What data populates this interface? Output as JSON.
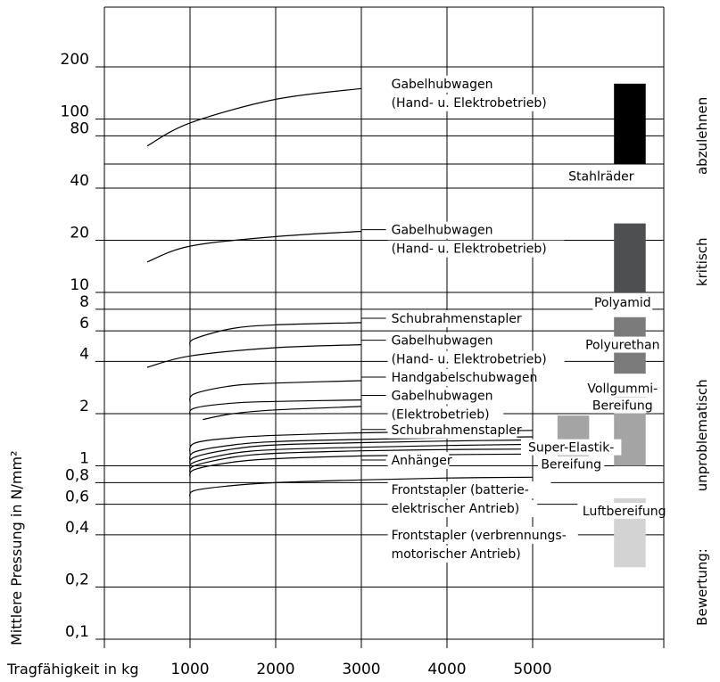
{
  "chart_data": {
    "type": "line",
    "xlabel": "Tragfähigkeit in kg",
    "ylabel": "Mittlere Pressung in N/mm²",
    "ylog": true,
    "ylim": [
      0.1,
      400
    ],
    "xlim": [
      0,
      6100
    ],
    "x_ticks": [
      {
        "v": 1000,
        "label": "1000"
      },
      {
        "v": 2000,
        "label": "2000"
      },
      {
        "v": 3000,
        "label": "3000"
      },
      {
        "v": 4000,
        "label": "4000"
      },
      {
        "v": 5000,
        "label": "5000"
      }
    ],
    "y_ticks": [
      {
        "v": 200,
        "label": "200"
      },
      {
        "v": 100,
        "label": "100"
      },
      {
        "v": 80,
        "label": "80"
      },
      {
        "v": 40,
        "label": "40"
      },
      {
        "v": 20,
        "label": "20"
      },
      {
        "v": 10,
        "label": "10"
      },
      {
        "v": 8,
        "label": "8"
      },
      {
        "v": 6,
        "label": "6"
      },
      {
        "v": 4,
        "label": "4"
      },
      {
        "v": 2,
        "label": "2"
      },
      {
        "v": 1,
        "label": "1"
      },
      {
        "v": 0.8,
        "label": "0,8"
      },
      {
        "v": 0.6,
        "label": "0,6"
      },
      {
        "v": 0.4,
        "label": "0,4"
      },
      {
        "v": 0.2,
        "label": "0,2"
      },
      {
        "v": 0.1,
        "label": "0,1"
      }
    ],
    "extra_hlines": [
      55
    ],
    "series": [
      {
        "x": [
          500,
          1000,
          2000,
          3000
        ],
        "y": [
          70,
          95,
          130,
          150
        ]
      },
      {
        "x": [
          500,
          1000,
          2000,
          3000
        ],
        "y": [
          15,
          18.5,
          21,
          22.5
        ]
      },
      {
        "x": [
          1000,
          1050,
          1500,
          2000,
          3000
        ],
        "y": [
          4.9,
          5.4,
          6.2,
          6.5,
          6.7
        ]
      },
      {
        "x": [
          500,
          1000,
          2000,
          3000
        ],
        "y": [
          3.7,
          4.3,
          4.8,
          5.0
        ]
      },
      {
        "x": [
          1000,
          1050,
          1500,
          2000,
          3000
        ],
        "y": [
          2.3,
          2.6,
          2.9,
          3.0,
          3.1
        ]
      },
      {
        "x": [
          1000,
          1050,
          1500,
          2000,
          3000
        ],
        "y": [
          1.95,
          2.15,
          2.3,
          2.35,
          2.4
        ]
      },
      {
        "x": [
          1150,
          1500,
          2000,
          3000
        ],
        "y": [
          1.85,
          2.0,
          2.1,
          2.2
        ]
      },
      {
        "x": [
          1000,
          1050,
          1500,
          2000,
          3000,
          4000,
          5000
        ],
        "y": [
          1.15,
          1.35,
          1.45,
          1.5,
          1.55,
          1.58,
          1.6
        ]
      },
      {
        "x": [
          1000,
          1050,
          1500,
          2000,
          3000,
          4000,
          5000
        ],
        "y": [
          1.05,
          1.2,
          1.32,
          1.38,
          1.42,
          1.45,
          1.47
        ]
      },
      {
        "x": [
          1000,
          1050,
          1500,
          2000,
          3000,
          4000,
          5000
        ],
        "y": [
          1.0,
          1.12,
          1.25,
          1.32,
          1.36,
          1.39,
          1.41
        ]
      },
      {
        "x": [
          1000,
          1050,
          1500,
          2000,
          3000,
          4000,
          5000
        ],
        "y": [
          0.95,
          1.05,
          1.18,
          1.24,
          1.28,
          1.31,
          1.33
        ]
      },
      {
        "x": [
          1000,
          1050,
          1500,
          2000,
          3000,
          4000,
          5000
        ],
        "y": [
          0.9,
          1.0,
          1.12,
          1.18,
          1.22,
          1.24,
          1.25
        ]
      },
      {
        "x": [
          1000,
          1050,
          1500,
          2000,
          3000,
          4000,
          5000
        ],
        "y": [
          0.85,
          0.95,
          1.05,
          1.1,
          1.14,
          1.16,
          1.17
        ]
      },
      {
        "x": [
          1000,
          1050,
          1500,
          2000,
          3000,
          4000,
          5000
        ],
        "y": [
          0.65,
          0.72,
          0.77,
          0.8,
          0.83,
          0.85,
          0.86
        ]
      }
    ],
    "annotations": [
      {
        "lines": [
          "Gabelhubwagen",
          "(Hand- u. Elektrobetrieb)"
        ],
        "x": 3350,
        "y": 160,
        "leader_from": null
      },
      {
        "lines": [
          "Gabelhubwagen",
          "(Hand- u. Elektrobetrieb)"
        ],
        "x": 3350,
        "y": 23,
        "leader_from": 3000
      },
      {
        "lines": [
          "Schubrahmenstapler"
        ],
        "x": 3350,
        "y": 7.1,
        "leader_from": 3000
      },
      {
        "lines": [
          "Gabelhubwagen",
          "(Hand- u. Elektrobetrieb)"
        ],
        "x": 3350,
        "y": 5.3,
        "leader_from": 3000
      },
      {
        "lines": [
          "Handgabelschubwagen"
        ],
        "x": 3350,
        "y": 3.25,
        "leader_from": 3000
      },
      {
        "lines": [
          "Gabelhubwagen",
          "(Elektrobetrieb)"
        ],
        "x": 3350,
        "y": 2.55,
        "leader_from": 3000
      },
      {
        "lines": [
          "Schubrahmenstapler"
        ],
        "x": 3350,
        "y": 1.62,
        "leader_from": 3000
      },
      {
        "lines": [
          "Anhänger"
        ],
        "x": 3350,
        "y": 1.08,
        "leader_from": 3000
      },
      {
        "lines": [
          "Frontstapler (batterie-",
          "elektrischer Antrieb)"
        ],
        "x": 3350,
        "y": 0.73,
        "leader_from": null
      },
      {
        "lines": [
          "Frontstapler (verbrennungs-",
          "motorischer Antrieb)"
        ],
        "x": 3350,
        "y": 0.4,
        "leader_from": null
      }
    ],
    "categories": [
      {
        "label_lines": [
          "Stahlräder"
        ],
        "bar": {
          "y0": 55,
          "y1": 160,
          "color": "#000000"
        },
        "bar_x": 5950,
        "bar_w": 370,
        "label_x": 5800,
        "label_y": 47
      },
      {
        "label_lines": [
          "Polyamid"
        ],
        "bar": {
          "y0": 10,
          "y1": 25,
          "color": "#4d4f51"
        },
        "bar_x": 5950,
        "bar_w": 370,
        "label_x": 6050,
        "label_y": 8.8
      },
      {
        "label_lines": [
          "Polyurethan"
        ],
        "bar": {
          "y0": 3.4,
          "y1": 7.2,
          "color": "#7b7b7b"
        },
        "bar_x": 5950,
        "bar_w": 370,
        "label_x": 6050,
        "label_y": 5.0
      },
      {
        "label_lines": [
          "Vollgummi-",
          "Bereifung"
        ],
        "bar": {
          "y0": 1.0,
          "y1": 2.5,
          "color": "#a4a4a4"
        },
        "bar_x": 5950,
        "bar_w": 370,
        "label_x": 6050,
        "label_y": 2.8
      },
      {
        "label_lines": [
          "Super-Elastik-",
          "Bereifung"
        ],
        "bar": {
          "y0": 1.0,
          "y1": 1.95,
          "color": "#a4a4a4"
        },
        "bar_x": 5290,
        "bar_w": 370,
        "label_x": 5450,
        "label_y": 1.28
      },
      {
        "label_lines": [
          "Luftbereifung"
        ],
        "bar": {
          "y0": 0.26,
          "y1": 0.65,
          "color": "#d3d3d3"
        },
        "bar_x": 5950,
        "bar_w": 370,
        "label_x": 6070,
        "label_y": 0.55
      }
    ],
    "ratings": [
      {
        "label": "abzulehnen",
        "y": 80
      },
      {
        "label": "kritisch",
        "y": 15
      },
      {
        "label": "unproblematisch",
        "y": 1.5
      }
    ],
    "ratings_title": "Bewertung:"
  }
}
